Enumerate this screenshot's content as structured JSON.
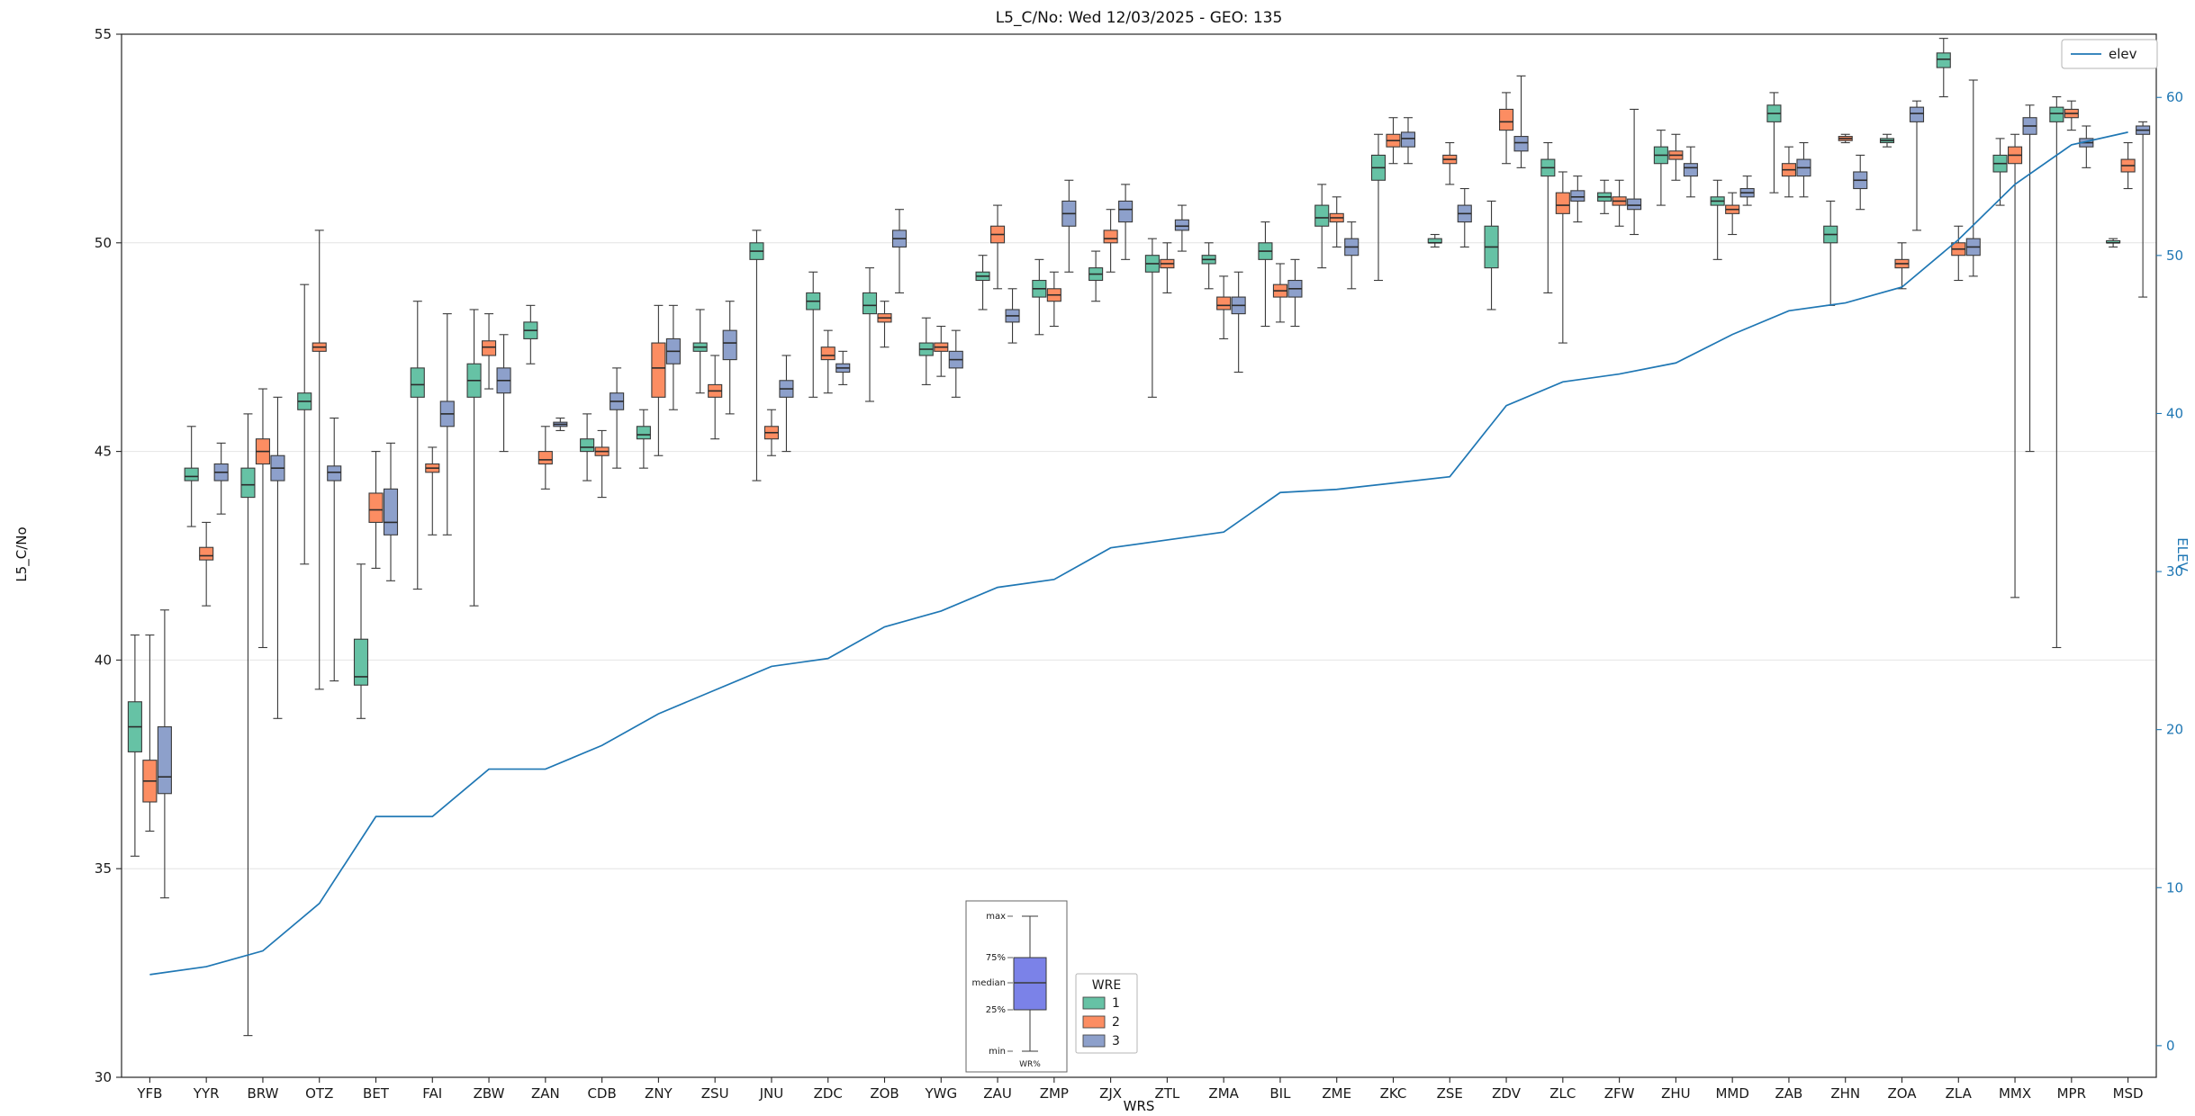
{
  "legend": {
    "title": "WRE"
  },
  "inset": {
    "labels": [
      "max",
      "75%",
      "median",
      "25%",
      "min"
    ],
    "caption": "WR%",
    "color": "#7b82e8"
  },
  "chart_data": {
    "type": "box",
    "title": "L5_C/No: Wed 12/03/2025 - GEO: 135",
    "xlabel": "WRS",
    "categories": [
      "YFB",
      "YYR",
      "BRW",
      "OTZ",
      "BET",
      "FAI",
      "ZBW",
      "ZAN",
      "CDB",
      "ZNY",
      "ZSU",
      "JNU",
      "ZDC",
      "ZOB",
      "YWG",
      "ZAU",
      "ZMP",
      "ZJX",
      "ZTL",
      "ZMA",
      "BIL",
      "ZME",
      "ZKC",
      "ZSE",
      "ZDV",
      "ZLC",
      "ZFW",
      "ZHU",
      "MMD",
      "ZAB",
      "ZHN",
      "ZOA",
      "ZLA",
      "MMX",
      "MPR",
      "MSD"
    ],
    "left_axis": {
      "label": "L5_C/No",
      "lim": [
        30,
        55
      ],
      "ticks": [
        30,
        35,
        40,
        45,
        50,
        55
      ],
      "color": "#262626"
    },
    "right_axis": {
      "label": "ELEV",
      "lim": [
        -2,
        64
      ],
      "ticks": [
        0,
        10,
        20,
        30,
        40,
        50,
        60
      ],
      "color": "#1f77b4"
    },
    "grid": true,
    "series": [
      {
        "name": "1",
        "color": "#66c2a5",
        "boxes": [
          [
            35.3,
            37.8,
            38.4,
            39.0,
            40.6
          ],
          [
            43.2,
            44.3,
            44.4,
            44.6,
            45.6
          ],
          [
            31.0,
            43.9,
            44.2,
            44.6,
            45.9
          ],
          [
            42.3,
            46.0,
            46.2,
            46.4,
            49.0
          ],
          [
            38.6,
            39.4,
            39.6,
            40.5,
            42.3
          ],
          [
            41.7,
            46.3,
            46.6,
            47.0,
            48.6
          ],
          [
            41.3,
            46.3,
            46.7,
            47.1,
            48.4
          ],
          [
            47.1,
            47.7,
            47.9,
            48.1,
            48.5
          ],
          [
            44.3,
            45.0,
            45.1,
            45.3,
            45.9
          ],
          [
            44.6,
            45.3,
            45.4,
            45.6,
            46.0
          ],
          [
            46.4,
            47.4,
            47.5,
            47.6,
            48.4
          ],
          [
            44.3,
            49.6,
            49.8,
            50.0,
            50.3
          ],
          [
            46.3,
            48.4,
            48.6,
            48.8,
            49.3
          ],
          [
            46.2,
            48.3,
            48.5,
            48.8,
            49.4
          ],
          [
            46.6,
            47.3,
            47.45,
            47.6,
            48.2
          ],
          [
            48.4,
            49.1,
            49.2,
            49.3,
            49.7
          ],
          [
            47.8,
            48.7,
            48.9,
            49.1,
            49.6
          ],
          [
            48.6,
            49.1,
            49.25,
            49.4,
            49.8
          ],
          [
            46.3,
            49.3,
            49.5,
            49.7,
            50.1
          ],
          [
            48.9,
            49.5,
            49.6,
            49.7,
            50.0
          ],
          [
            48.0,
            49.6,
            49.8,
            50.0,
            50.5
          ],
          [
            49.4,
            50.4,
            50.6,
            50.9,
            51.4
          ],
          [
            49.1,
            51.5,
            51.8,
            52.1,
            52.6
          ],
          [
            49.9,
            50.0,
            50.0,
            50.1,
            50.2
          ],
          [
            48.4,
            49.4,
            49.9,
            50.4,
            51.0
          ],
          [
            48.8,
            51.6,
            51.8,
            52.0,
            52.4
          ],
          [
            50.7,
            51.0,
            51.1,
            51.2,
            51.5
          ],
          [
            50.9,
            51.9,
            52.1,
            52.3,
            52.7
          ],
          [
            49.6,
            50.9,
            51.0,
            51.1,
            51.5
          ],
          [
            51.2,
            52.9,
            53.1,
            53.3,
            53.6
          ],
          [
            48.5,
            50.0,
            50.2,
            50.4,
            51.0
          ],
          [
            52.3,
            52.4,
            52.45,
            52.5,
            52.6
          ],
          [
            53.5,
            54.2,
            54.4,
            54.55,
            54.9
          ],
          [
            50.9,
            51.7,
            51.9,
            52.1,
            52.5
          ],
          [
            40.3,
            52.9,
            53.1,
            53.25,
            53.5
          ],
          [
            49.9,
            50.0,
            50.0,
            50.05,
            50.1
          ]
        ]
      },
      {
        "name": "2",
        "color": "#fc8d62",
        "boxes": [
          [
            35.9,
            36.6,
            37.1,
            37.6,
            40.6
          ],
          [
            41.3,
            42.4,
            42.5,
            42.7,
            43.3
          ],
          [
            40.3,
            44.7,
            45.0,
            45.3,
            46.5
          ],
          [
            39.3,
            47.4,
            47.5,
            47.6,
            50.3
          ],
          [
            42.2,
            43.3,
            43.6,
            44.0,
            45.0
          ],
          [
            43.0,
            44.5,
            44.6,
            44.7,
            45.1
          ],
          [
            46.5,
            47.3,
            47.5,
            47.65,
            48.3
          ],
          [
            44.1,
            44.7,
            44.8,
            45.0,
            45.6
          ],
          [
            43.9,
            44.9,
            45.0,
            45.1,
            45.5
          ],
          [
            44.9,
            46.3,
            47.0,
            47.6,
            48.5
          ],
          [
            45.3,
            46.3,
            46.45,
            46.6,
            47.3
          ],
          [
            44.9,
            45.3,
            45.45,
            45.6,
            46.0
          ],
          [
            46.4,
            47.2,
            47.3,
            47.5,
            47.9
          ],
          [
            47.5,
            48.1,
            48.2,
            48.3,
            48.6
          ],
          [
            46.8,
            47.4,
            47.5,
            47.6,
            48.0
          ],
          [
            48.9,
            50.0,
            50.2,
            50.4,
            50.9
          ],
          [
            48.0,
            48.6,
            48.75,
            48.9,
            49.3
          ],
          [
            49.3,
            50.0,
            50.1,
            50.3,
            50.8
          ],
          [
            48.8,
            49.4,
            49.5,
            49.6,
            50.0
          ],
          [
            47.7,
            48.4,
            48.5,
            48.7,
            49.2
          ],
          [
            48.1,
            48.7,
            48.85,
            49.0,
            49.5
          ],
          [
            49.9,
            50.5,
            50.6,
            50.7,
            51.1
          ],
          [
            51.9,
            52.3,
            52.45,
            52.6,
            53.0
          ],
          [
            51.4,
            51.9,
            52.0,
            52.1,
            52.4
          ],
          [
            51.9,
            52.7,
            52.9,
            53.2,
            53.6
          ],
          [
            47.6,
            50.7,
            50.9,
            51.2,
            51.7
          ],
          [
            50.4,
            50.9,
            51.0,
            51.1,
            51.5
          ],
          [
            51.5,
            52.0,
            52.1,
            52.2,
            52.6
          ],
          [
            50.2,
            50.7,
            50.8,
            50.9,
            51.2
          ],
          [
            51.1,
            51.6,
            51.75,
            51.9,
            52.3
          ],
          [
            52.4,
            52.45,
            52.5,
            52.55,
            52.6
          ],
          [
            48.9,
            49.4,
            49.5,
            49.6,
            50.0
          ],
          [
            49.1,
            49.7,
            49.85,
            50.0,
            50.4
          ],
          [
            41.5,
            51.9,
            52.1,
            52.3,
            52.6
          ],
          [
            52.7,
            53.0,
            53.1,
            53.2,
            53.4
          ],
          [
            51.3,
            51.7,
            51.85,
            52.0,
            52.4
          ]
        ]
      },
      {
        "name": "3",
        "color": "#8da0cb",
        "boxes": [
          [
            34.3,
            36.8,
            37.2,
            38.4,
            41.2
          ],
          [
            43.5,
            44.3,
            44.5,
            44.7,
            45.2
          ],
          [
            38.6,
            44.3,
            44.6,
            44.9,
            46.3
          ],
          [
            39.5,
            44.3,
            44.5,
            44.65,
            45.8
          ],
          [
            41.9,
            43.0,
            43.3,
            44.1,
            45.2
          ],
          [
            43.0,
            45.6,
            45.9,
            46.2,
            48.3
          ],
          [
            45.0,
            46.4,
            46.7,
            47.0,
            47.8
          ],
          [
            45.5,
            45.6,
            45.65,
            45.7,
            45.8
          ],
          [
            44.6,
            46.0,
            46.2,
            46.4,
            47.0
          ],
          [
            46.0,
            47.1,
            47.4,
            47.7,
            48.5
          ],
          [
            45.9,
            47.2,
            47.6,
            47.9,
            48.6
          ],
          [
            45.0,
            46.3,
            46.5,
            46.7,
            47.3
          ],
          [
            46.6,
            46.9,
            47.0,
            47.1,
            47.4
          ],
          [
            48.8,
            49.9,
            50.1,
            50.3,
            50.8
          ],
          [
            46.3,
            47.0,
            47.2,
            47.4,
            47.9
          ],
          [
            47.6,
            48.1,
            48.25,
            48.4,
            48.9
          ],
          [
            49.3,
            50.4,
            50.7,
            51.0,
            51.5
          ],
          [
            49.6,
            50.5,
            50.8,
            51.0,
            51.4
          ],
          [
            49.8,
            50.3,
            50.4,
            50.55,
            50.9
          ],
          [
            46.9,
            48.3,
            48.5,
            48.7,
            49.3
          ],
          [
            48.0,
            48.7,
            48.9,
            49.1,
            49.6
          ],
          [
            48.9,
            49.7,
            49.9,
            50.1,
            50.5
          ],
          [
            51.9,
            52.3,
            52.5,
            52.65,
            53.0
          ],
          [
            49.9,
            50.5,
            50.7,
            50.9,
            51.3
          ],
          [
            51.8,
            52.2,
            52.4,
            52.55,
            54.0
          ],
          [
            50.5,
            51.0,
            51.1,
            51.25,
            51.6
          ],
          [
            50.2,
            50.8,
            50.9,
            51.05,
            53.2
          ],
          [
            51.1,
            51.6,
            51.8,
            51.9,
            52.3
          ],
          [
            50.9,
            51.1,
            51.2,
            51.3,
            51.6
          ],
          [
            51.1,
            51.6,
            51.8,
            52.0,
            52.4
          ],
          [
            50.8,
            51.3,
            51.5,
            51.7,
            52.1
          ],
          [
            50.3,
            52.9,
            53.1,
            53.25,
            53.4
          ],
          [
            49.2,
            49.7,
            49.9,
            50.1,
            53.9
          ],
          [
            45.0,
            52.6,
            52.8,
            53.0,
            53.3
          ],
          [
            51.8,
            52.3,
            52.4,
            52.5,
            52.8
          ],
          [
            48.7,
            52.6,
            52.7,
            52.8,
            52.9
          ]
        ]
      }
    ],
    "line": {
      "name": "elev",
      "color": "#1f77b4",
      "values": [
        4.5,
        5.0,
        6.0,
        9.0,
        14.5,
        14.5,
        17.5,
        17.5,
        19.0,
        21.0,
        22.5,
        24.0,
        24.5,
        26.5,
        27.5,
        29.0,
        29.5,
        31.5,
        32.0,
        32.5,
        35.0,
        35.2,
        35.6,
        36.0,
        40.5,
        42.0,
        42.5,
        43.2,
        45.0,
        46.5,
        47.0,
        48.0,
        51.0,
        54.5,
        57.0,
        57.8
      ]
    }
  }
}
